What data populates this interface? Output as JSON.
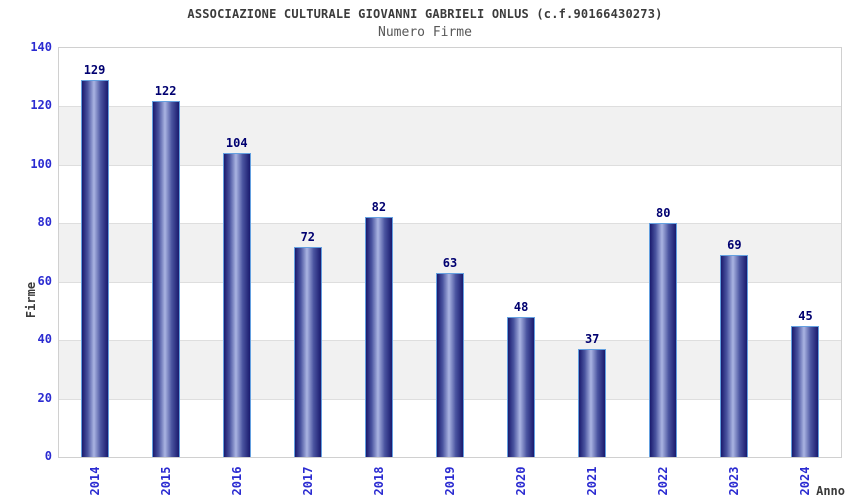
{
  "chart_data": {
    "type": "bar",
    "title": "ASSOCIAZIONE CULTURALE GIOVANNI GABRIELI ONLUS (c.f.90166430273)",
    "subtitle": "Numero Firme",
    "xlabel": "Anno",
    "ylabel": "Firme",
    "categories": [
      "2014",
      "2015",
      "2016",
      "2017",
      "2018",
      "2019",
      "2020",
      "2021",
      "2022",
      "2023",
      "2024"
    ],
    "values": [
      129,
      122,
      104,
      72,
      82,
      63,
      48,
      37,
      80,
      69,
      45
    ],
    "ylim": [
      0,
      140
    ],
    "yticks": [
      0,
      20,
      40,
      60,
      80,
      100,
      120,
      140
    ],
    "legend": "none",
    "grid": "horizontal-alternating-bands",
    "value_labels": "above-bars",
    "colors": {
      "title_text": "#3b3b3b",
      "subtitle_text": "#585858",
      "axis_tick_text": "#2b2bd1",
      "value_label_text": "#000070",
      "axis_title_text": "#3b3b3b",
      "bar_dark": "#1a1a6e",
      "bar_mid": "#4a54a0",
      "bar_light": "#aab4e2",
      "bar_border": "#64a0e0",
      "band_gray": "#f1f1f1",
      "gridline": "#dedede",
      "plot_border": "#d0d0d0",
      "background": "#ffffff"
    }
  }
}
